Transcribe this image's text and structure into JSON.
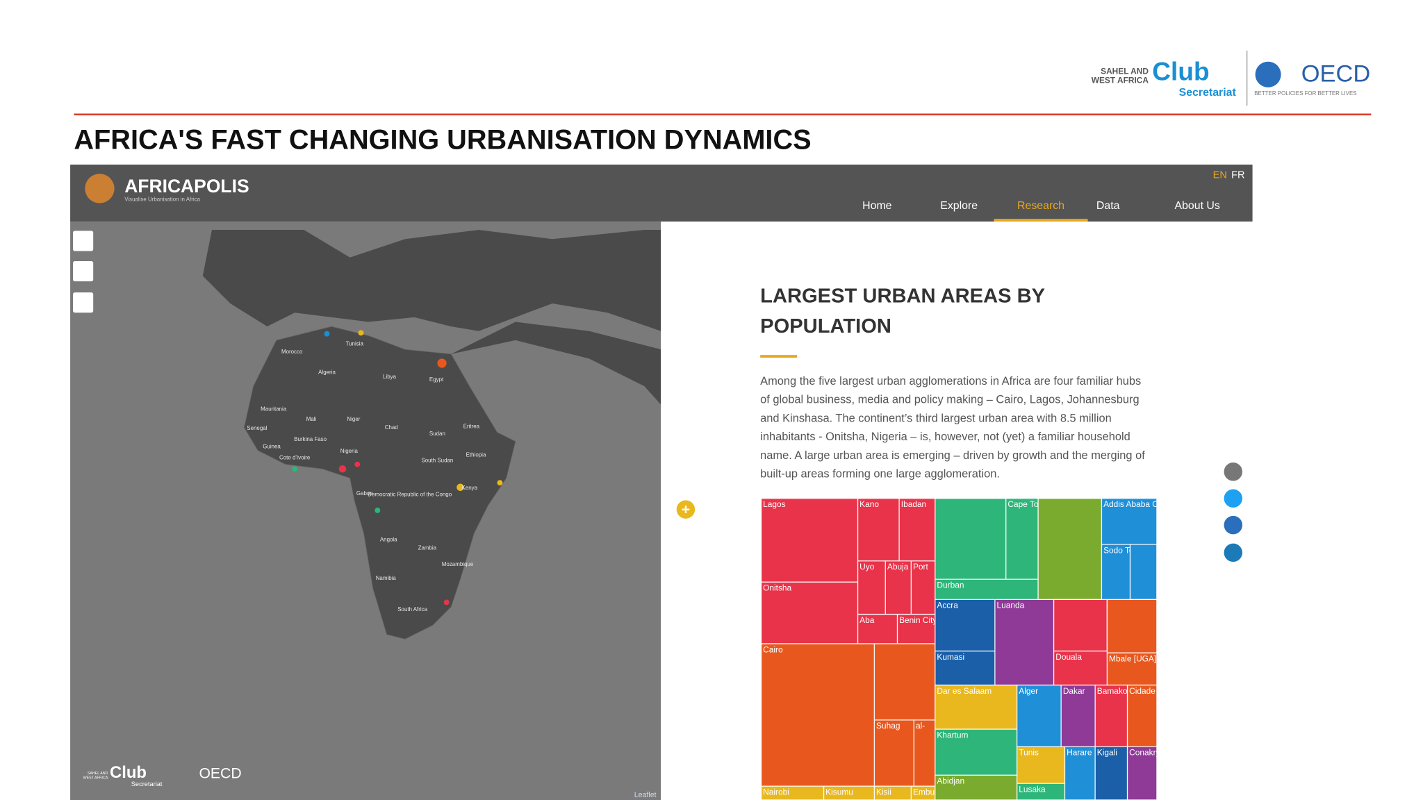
{
  "header": {
    "logo": {
      "org_line1": "SAHEL AND",
      "org_line2": "WEST AFRICA",
      "club": "Club",
      "secretariat": "Secretariat",
      "oecd": "OECD",
      "oecd_tagline": "BETTER POLICIES FOR BETTER LIVES"
    },
    "title": "AFRICA'S FAST CHANGING URBANISATION DYNAMICS"
  },
  "site": {
    "brand": "AFRICAPOLIS",
    "tagline": "Visualise Urbanisation in Africa",
    "languages": [
      "EN",
      "FR"
    ],
    "nav": [
      "Home",
      "Explore",
      "Research",
      "Data",
      "About Us"
    ]
  },
  "map": {
    "country_labels": [
      "Morocco",
      "Tunisia",
      "Algeria",
      "Libya",
      "Egypt",
      "Mauritania",
      "Mali",
      "Niger",
      "Senegal",
      "Chad",
      "Sudan",
      "Eritrea",
      "Burkina Faso",
      "Guinea",
      "Nigeria",
      "Cote d'Ivoire",
      "South Sudan",
      "Ethiopia",
      "Gabon",
      "Democratic Republic of the Congo",
      "Kenya",
      "Angola",
      "Zambia",
      "Mozambique",
      "Namibia",
      "South Africa"
    ],
    "attribution": "Leaflet"
  },
  "article": {
    "heading_lines": [
      "LARGEST URBAN AREAS BY",
      "POPULATION"
    ],
    "paragraph_lines": [
      "Among the five largest urban agglomerations in Africa are four familiar hubs",
      "of global business, media and policy making – Cairo, Lagos, Johannesburg",
      "and Kinshasa. The continent’s third largest urban area with 8.5 million",
      "inhabitants - Onitsha, Nigeria – is, however, not (yet) a familiar household",
      "name. A large urban area is emerging – driven by growth and the merging of",
      "built-up areas forming one large agglomeration."
    ],
    "treemap_labels": [
      "Lagos",
      "Kano",
      "Ibadan",
      "Uyo",
      "Abuja",
      "Port",
      "Onitsha",
      "Aba",
      "Benin City",
      "Cairo",
      "Suhag",
      "al-",
      "Nairobi",
      "Kisumu",
      "Kisii",
      "Embu",
      "Cape Town",
      "Durban",
      "Addis Ababa City",
      "Sodo Town",
      "Accra",
      "Kumasi",
      "Luanda",
      "Douala",
      "Mbale [UGA]",
      "Dar es Salaam",
      "Khartum",
      "Abidjan",
      "Alger",
      "Tunis",
      "Lusaka",
      "Dakar",
      "Bamako",
      "Cidade de Maputo",
      "Harare",
      "Kigali",
      "Conakry"
    ]
  }
}
